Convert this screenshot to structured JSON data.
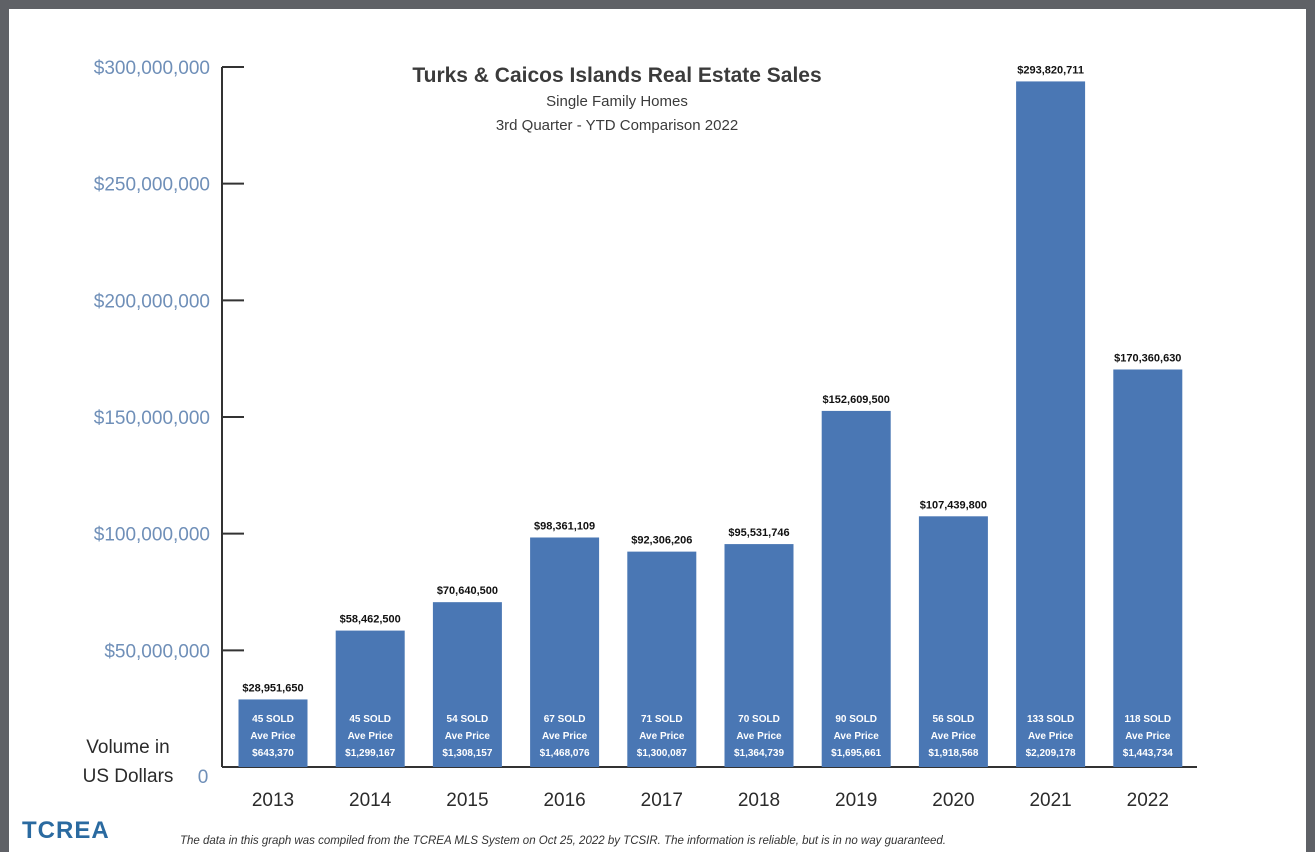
{
  "chart_data": {
    "type": "bar",
    "title": "Turks & Caicos Islands Real Estate Sales",
    "subtitle_lines": [
      "Single Family Homes",
      "3rd Quarter - YTD Comparison 2022"
    ],
    "ylabel_lines": [
      "Volume in",
      "US Dollars"
    ],
    "ylim": [
      0,
      300000000
    ],
    "yticks": [
      {
        "value": 300000000,
        "label": "$300,000,000"
      },
      {
        "value": 250000000,
        "label": "$250,000,000"
      },
      {
        "value": 200000000,
        "label": "$200,000,000"
      },
      {
        "value": 150000000,
        "label": "$150,000,000"
      },
      {
        "value": 100000000,
        "label": "$100,000,000"
      },
      {
        "value": 50000000,
        "label": "$50,000,000"
      }
    ],
    "zero_label": "0",
    "categories": [
      "2013",
      "2014",
      "2015",
      "2016",
      "2017",
      "2018",
      "2019",
      "2020",
      "2021",
      "2022"
    ],
    "values": [
      28951650,
      58462500,
      70640500,
      98361109,
      92306206,
      95531746,
      152609500,
      107439800,
      293820711,
      170360630
    ],
    "value_labels": [
      "$28,951,650",
      "$58,462,500",
      "$70,640,500",
      "$98,361,109",
      "$92,306,206",
      "$95,531,746",
      "$152,609,500",
      "$107,439,800",
      "$293,820,711",
      "$170,360,630"
    ],
    "sold_labels": [
      "45 SOLD",
      "45 SOLD",
      "54 SOLD",
      "67 SOLD",
      "71 SOLD",
      "70 SOLD",
      "90 SOLD",
      "56 SOLD",
      "133 SOLD",
      "118 SOLD"
    ],
    "ave_price_label": "Ave Price",
    "ave_prices": [
      "$643,370",
      "$1,299,167",
      "$1,308,157",
      "$1,468,076",
      "$1,300,087",
      "$1,364,739",
      "$1,695,661",
      "$1,918,568",
      "$2,209,178",
      "$1,443,734"
    ],
    "bar_color": "#4a77b4",
    "grid": false
  },
  "logo": {
    "text": "TCREA"
  },
  "footnote": "The data in this graph was compiled from the TCREA MLS System on Oct 25, 2022 by TCSIR.  The information is reliable, but is in no way guaranteed."
}
